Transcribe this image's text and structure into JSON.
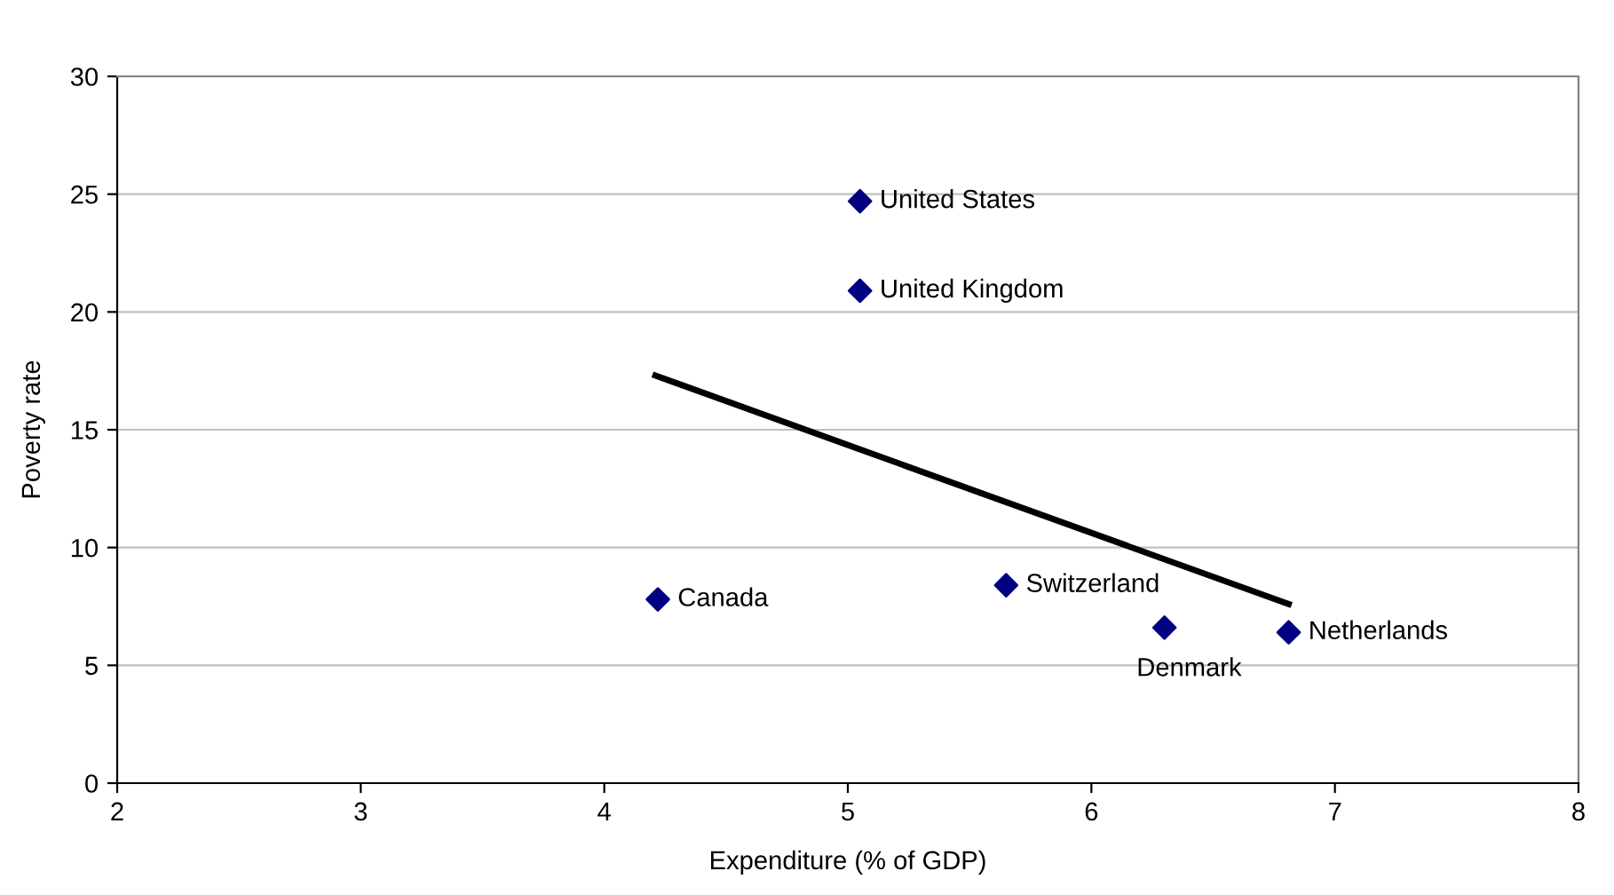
{
  "chart_data": {
    "type": "scatter",
    "xlabel": "Expenditure (% of GDP)",
    "ylabel": "Poverty rate",
    "xlim": [
      2,
      8
    ],
    "xticks": [
      2,
      3,
      4,
      5,
      6,
      7,
      8
    ],
    "ylim": [
      0,
      30
    ],
    "yticks": [
      0,
      5,
      10,
      15,
      20,
      25,
      30
    ],
    "grid": "y",
    "legend": false,
    "series": [
      {
        "marker": "diamond",
        "color": "#000080",
        "x": [
          5.05,
          5.05,
          4.22,
          5.65,
          6.3,
          6.81
        ],
        "values": [
          24.7,
          20.9,
          7.8,
          8.4,
          6.6,
          6.4
        ],
        "value_labels": [
          "United States",
          "United Kingdom",
          "Canada",
          "Switzerland",
          "Denmark",
          "Netherlands"
        ]
      },
      {
        "type": "line",
        "color": "#000000",
        "x": [
          4.21,
          6.81
        ],
        "values": [
          17.3,
          7.6
        ],
        "line_style": "solid"
      }
    ]
  }
}
